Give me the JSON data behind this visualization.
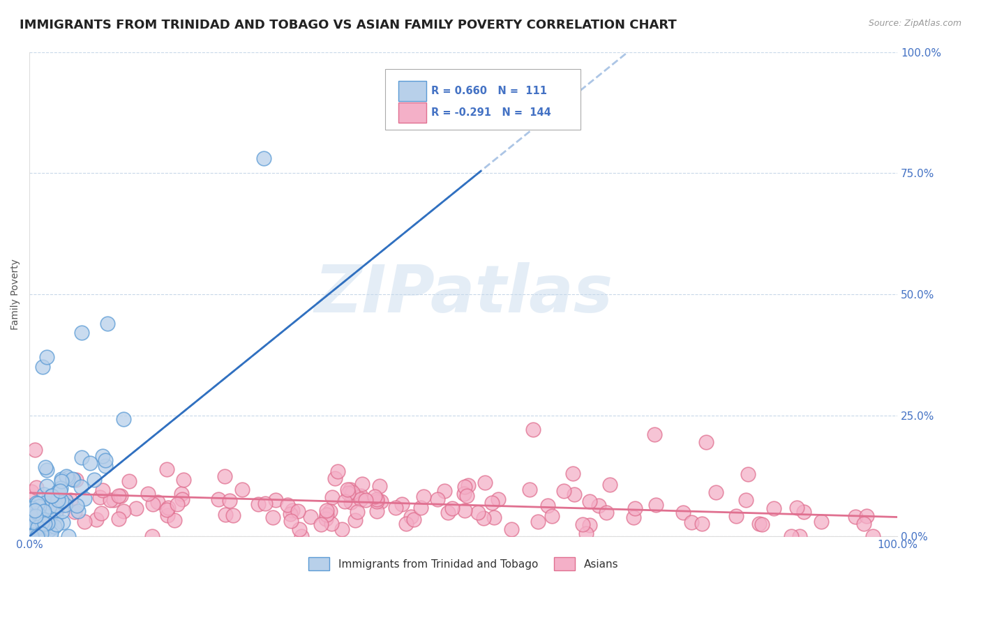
{
  "title": "IMMIGRANTS FROM TRINIDAD AND TOBAGO VS ASIAN FAMILY POVERTY CORRELATION CHART",
  "source_text": "Source: ZipAtlas.com",
  "ylabel": "Family Poverty",
  "xlim": [
    0.0,
    1.0
  ],
  "ylim": [
    0.0,
    1.0
  ],
  "x_tick_labels": [
    "0.0%",
    "100.0%"
  ],
  "y_tick_positions": [
    0.0,
    0.25,
    0.5,
    0.75,
    1.0
  ],
  "y_tick_labels": [
    "0.0%",
    "25.0%",
    "50.0%",
    "75.0%",
    "100.0%"
  ],
  "grid_color": "#c8d8e8",
  "background_color": "#ffffff",
  "scatter1_color": "#b8d0ea",
  "scatter1_edge_color": "#5b9bd5",
  "scatter2_color": "#f4b0c8",
  "scatter2_edge_color": "#e07090",
  "line1_color": "#3070c0",
  "line2_color": "#e07090",
  "legend_r1": "R = 0.660",
  "legend_n1": "N =  111",
  "legend_r2": "R = -0.291",
  "legend_n2": "N =  144",
  "legend_text_color": "#4472c4",
  "watermark_text": "ZIPatlas",
  "title_fontsize": 13,
  "ylabel_fontsize": 10,
  "tick_fontsize": 11,
  "tick_color": "#4472c4",
  "n1": 111,
  "n2": 144,
  "seed1": 42,
  "seed2": 77
}
